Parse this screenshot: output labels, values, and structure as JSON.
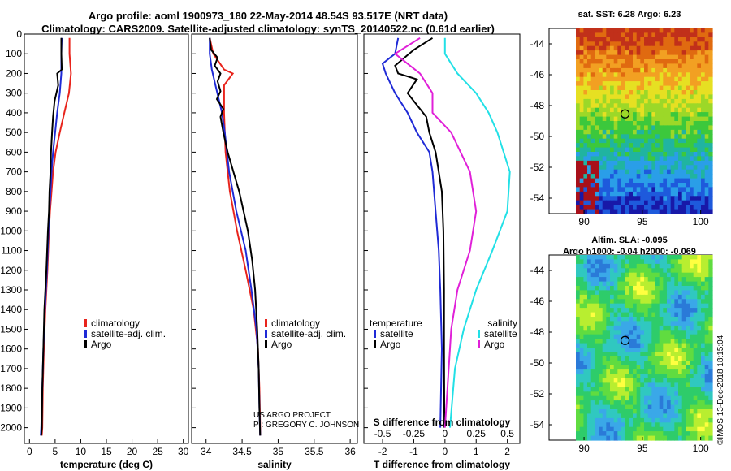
{
  "header": {
    "title_line1": "Argo profile: aoml 1900973_180 22-May-2014 48.54S 93.517E (NRT data)",
    "title_line2": "Climatology: CARS2009. Satellite-adjusted climatology: synTS_20140522.nc (0.61d earlier)"
  },
  "credits": {
    "line1": "US ARGO PROJECT",
    "line2": "PI: GREGORY C. JOHNSON",
    "imos": "©IMOS 13-Dec-2018 18:15:04"
  },
  "colors": {
    "climatology": "#e8241c",
    "satellite": "#1f2ad6",
    "argo": "#000000",
    "satellite_salinity": "#22e0e6",
    "argo_salinity": "#e020d8"
  },
  "chart_data": [
    {
      "type": "line",
      "title": "",
      "xlabel": "temperature (deg C)",
      "ylabel": "",
      "xlim": [
        -1,
        31
      ],
      "ylim": [
        2080,
        0
      ],
      "xticks": [
        "0",
        "5",
        "10",
        "15",
        "20",
        "25",
        "30"
      ],
      "yticks": [
        "0",
        "100",
        "200",
        "300",
        "400",
        "500",
        "600",
        "700",
        "800",
        "900",
        "1000",
        "1100",
        "1200",
        "1300",
        "1400",
        "1500",
        "1600",
        "1700",
        "1800",
        "1900",
        "2000"
      ],
      "legend": [
        "climatology",
        "satellite-adj. clim.",
        "Argo"
      ],
      "series": [
        {
          "name": "climatology",
          "color": "#e8241c",
          "points": [
            [
              7.8,
              20
            ],
            [
              7.8,
              100
            ],
            [
              8.1,
              200
            ],
            [
              7.7,
              300
            ],
            [
              6.8,
              400
            ],
            [
              5.9,
              500
            ],
            [
              5.1,
              600
            ],
            [
              4.6,
              700
            ],
            [
              4.3,
              800
            ],
            [
              4.0,
              900
            ],
            [
              3.8,
              1000
            ],
            [
              3.5,
              1200
            ],
            [
              3.1,
              1400
            ],
            [
              2.8,
              1600
            ],
            [
              2.6,
              1800
            ],
            [
              2.5,
              2000
            ],
            [
              2.4,
              2040
            ]
          ]
        },
        {
          "name": "satellite-adj. clim.",
          "color": "#1f2ad6",
          "points": [
            [
              6.3,
              20
            ],
            [
              6.2,
              100
            ],
            [
              6.2,
              200
            ],
            [
              5.9,
              300
            ],
            [
              5.4,
              400
            ],
            [
              5.0,
              500
            ],
            [
              4.6,
              600
            ],
            [
              4.3,
              700
            ],
            [
              4.1,
              800
            ],
            [
              3.9,
              900
            ],
            [
              3.7,
              1000
            ],
            [
              3.4,
              1200
            ],
            [
              3.0,
              1400
            ],
            [
              2.7,
              1600
            ],
            [
              2.5,
              1800
            ],
            [
              2.3,
              2000
            ],
            [
              2.2,
              2040
            ]
          ]
        },
        {
          "name": "Argo",
          "color": "#000000",
          "points": [
            [
              6.2,
              20
            ],
            [
              6.2,
              100
            ],
            [
              6.3,
              180
            ],
            [
              5.4,
              200
            ],
            [
              5.6,
              260
            ],
            [
              4.9,
              340
            ],
            [
              4.6,
              420
            ],
            [
              4.4,
              500
            ],
            [
              4.2,
              600
            ],
            [
              4.1,
              700
            ],
            [
              3.9,
              800
            ],
            [
              3.8,
              900
            ],
            [
              3.6,
              1000
            ],
            [
              3.3,
              1200
            ],
            [
              2.9,
              1400
            ],
            [
              2.7,
              1600
            ],
            [
              2.5,
              1800
            ],
            [
              2.4,
              2000
            ],
            [
              2.3,
              2040
            ]
          ]
        }
      ]
    },
    {
      "type": "line",
      "title": "",
      "xlabel": "salinity",
      "ylabel": "",
      "xlim": [
        33.8,
        36.1
      ],
      "ylim": [
        2080,
        0
      ],
      "xticks": [
        "34",
        "34.5",
        "35",
        "35.5",
        "36"
      ],
      "legend": [
        "climatology",
        "satellite-adj. clim.",
        "Argo"
      ],
      "series": [
        {
          "name": "climatology",
          "color": "#e8241c",
          "points": [
            [
              34.05,
              20
            ],
            [
              34.1,
              100
            ],
            [
              34.25,
              180
            ],
            [
              34.37,
              200
            ],
            [
              34.25,
              260
            ],
            [
              34.25,
              400
            ],
            [
              34.27,
              600
            ],
            [
              34.33,
              800
            ],
            [
              34.43,
              1000
            ],
            [
              34.55,
              1200
            ],
            [
              34.66,
              1400
            ],
            [
              34.72,
              1600
            ],
            [
              34.74,
              1800
            ],
            [
              34.75,
              2000
            ],
            [
              34.75,
              2040
            ]
          ]
        },
        {
          "name": "satellite-adj. clim.",
          "color": "#1f2ad6",
          "points": [
            [
              34.05,
              20
            ],
            [
              34.05,
              100
            ],
            [
              34.08,
              180
            ],
            [
              34.13,
              260
            ],
            [
              34.22,
              400
            ],
            [
              34.26,
              500
            ],
            [
              34.32,
              700
            ],
            [
              34.42,
              900
            ],
            [
              34.55,
              1100
            ],
            [
              34.63,
              1300
            ],
            [
              34.7,
              1500
            ],
            [
              34.73,
              1700
            ],
            [
              34.74,
              1900
            ],
            [
              34.75,
              2040
            ]
          ]
        },
        {
          "name": "Argo",
          "color": "#000000",
          "points": [
            [
              34.05,
              20
            ],
            [
              34.07,
              80
            ],
            [
              34.16,
              120
            ],
            [
              34.12,
              160
            ],
            [
              34.2,
              200
            ],
            [
              34.16,
              240
            ],
            [
              34.2,
              290
            ],
            [
              34.15,
              330
            ],
            [
              34.24,
              380
            ],
            [
              34.2,
              420
            ],
            [
              34.24,
              500
            ],
            [
              34.3,
              600
            ],
            [
              34.38,
              700
            ],
            [
              34.46,
              800
            ],
            [
              34.52,
              900
            ],
            [
              34.58,
              1000
            ],
            [
              34.64,
              1150
            ],
            [
              34.68,
              1300
            ],
            [
              34.71,
              1500
            ],
            [
              34.73,
              1700
            ],
            [
              34.74,
              1900
            ],
            [
              34.75,
              2040
            ]
          ]
        }
      ]
    },
    {
      "type": "line",
      "title": "",
      "xlabel": "T difference from climatology",
      "x2label": "S difference from climatology",
      "ylabel": "",
      "xlim": [
        -2.6,
        2.4
      ],
      "ylim": [
        2080,
        0
      ],
      "xticks": [
        "-2",
        "-1",
        "0",
        "1",
        "2"
      ],
      "x2ticks": [
        "-0.5",
        "-0.25",
        "0",
        "0.25",
        "0.5"
      ],
      "legend_temperature": {
        "title": "temperature",
        "entries": [
          "satellite",
          "Argo"
        ]
      },
      "legend_salinity": {
        "title": "salinity",
        "entries": [
          "satellite",
          "Argo"
        ]
      },
      "series": [
        {
          "name": "temperature satellite",
          "color": "#1f2ad6",
          "points": [
            [
              -1.5,
              20
            ],
            [
              -1.6,
              100
            ],
            [
              -2.0,
              150
            ],
            [
              -1.9,
              200
            ],
            [
              -1.6,
              300
            ],
            [
              -1.2,
              400
            ],
            [
              -0.9,
              500
            ],
            [
              -0.5,
              600
            ],
            [
              -0.4,
              700
            ],
            [
              -0.3,
              900
            ],
            [
              -0.2,
              1100
            ],
            [
              -0.15,
              1300
            ],
            [
              -0.1,
              1600
            ],
            [
              -0.15,
              2000
            ]
          ]
        },
        {
          "name": "temperature Argo",
          "color": "#000000",
          "points": [
            [
              -0.4,
              20
            ],
            [
              -1.0,
              80
            ],
            [
              -1.6,
              160
            ],
            [
              -1.5,
              200
            ],
            [
              -0.9,
              230
            ],
            [
              -1.2,
              300
            ],
            [
              -1.0,
              340
            ],
            [
              -0.6,
              420
            ],
            [
              -0.5,
              500
            ],
            [
              -0.3,
              600
            ],
            [
              -0.2,
              700
            ],
            [
              -0.1,
              800
            ],
            [
              -0.05,
              1000
            ],
            [
              -0.03,
              1300
            ],
            [
              -0.03,
              1600
            ],
            [
              -0.02,
              2000
            ]
          ]
        },
        {
          "name": "salinity satellite",
          "color": "#22e0e6",
          "points": [
            [
              0.0,
              20
            ],
            [
              0.0,
              100
            ],
            [
              0.1,
              200
            ],
            [
              0.25,
              300
            ],
            [
              0.35,
              400
            ],
            [
              0.42,
              500
            ],
            [
              0.52,
              700
            ],
            [
              0.5,
              900
            ],
            [
              0.38,
              1100
            ],
            [
              0.25,
              1300
            ],
            [
              0.15,
              1500
            ],
            [
              0.08,
              1700
            ],
            [
              0.04,
              2000
            ]
          ]
        },
        {
          "name": "salinity Argo",
          "color": "#e020d8",
          "points": [
            [
              -0.2,
              20
            ],
            [
              -0.4,
              100
            ],
            [
              -0.2,
              200
            ],
            [
              -0.1,
              300
            ],
            [
              -0.1,
              400
            ],
            [
              0.05,
              500
            ],
            [
              0.2,
              700
            ],
            [
              0.25,
              900
            ],
            [
              0.2,
              1100
            ],
            [
              0.1,
              1300
            ],
            [
              0.05,
              1500
            ],
            [
              0.02,
              1800
            ],
            [
              0.0,
              2000
            ]
          ]
        }
      ]
    },
    {
      "type": "heatmap",
      "title": "sat. SST: 6.28 Argo: 6.23",
      "xticks": [
        "90",
        "95",
        "100"
      ],
      "yticks": [
        "-44",
        "-46",
        "-48",
        "-50",
        "-52",
        "-54"
      ],
      "xlim": [
        87,
        101
      ],
      "ylim": [
        -55,
        -43
      ],
      "float_position": [
        93.517,
        -48.54
      ]
    },
    {
      "type": "heatmap",
      "title": "Altim. SLA: -0.095",
      "subtitle": "Argo h1000: -0.04 h2000: -0.069",
      "xticks": [
        "90",
        "95",
        "100"
      ],
      "yticks": [
        "-44",
        "-46",
        "-48",
        "-50",
        "-52",
        "-54"
      ],
      "xlim": [
        87,
        101
      ],
      "ylim": [
        -55,
        -43
      ],
      "float_position": [
        93.517,
        -48.54
      ]
    }
  ]
}
